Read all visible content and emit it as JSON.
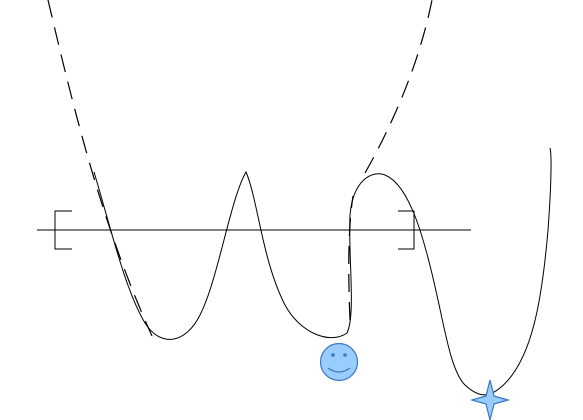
{
  "diagram": {
    "colors": {
      "stroke": "#000000",
      "smiley_fill": "#99ccff",
      "smiley_stroke": "#3a78c0",
      "star_fill": "#99ccff",
      "star_stroke": "#3a78c0",
      "background": "#ffffff"
    },
    "elements": {
      "parabola": "dashed-parabola-curve",
      "wavy_curve": "solid-wavy-curve",
      "baseline": "horizontal-line",
      "left_bracket": "left-bracket",
      "right_bracket": "right-bracket",
      "smiley": "smiley-face-icon",
      "star": "four-point-star-icon"
    }
  }
}
